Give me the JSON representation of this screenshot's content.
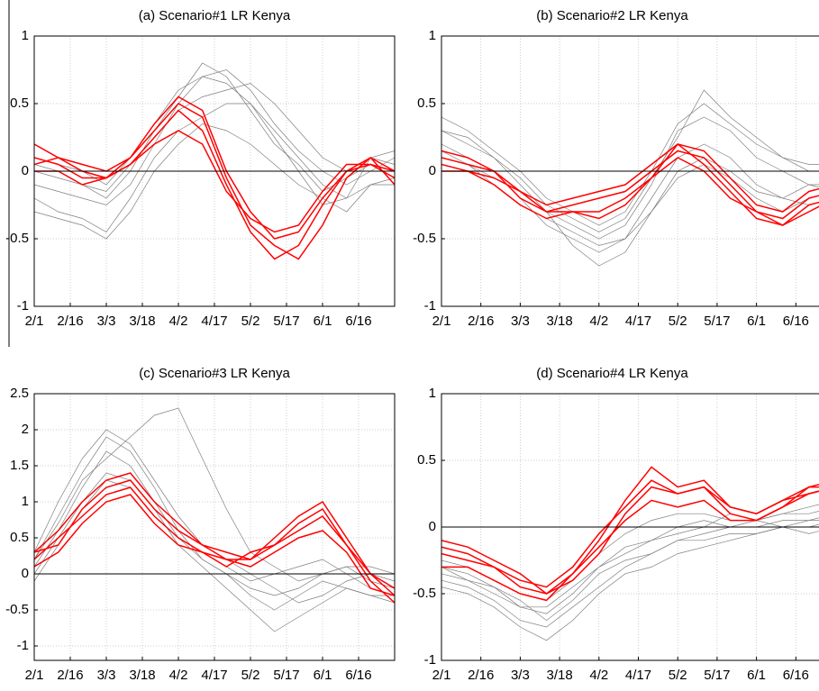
{
  "chart_data": [
    {
      "type": "line",
      "title": "(a) Scenario#1 LR Kenya",
      "x": [
        0,
        10,
        20,
        30,
        40,
        50,
        60,
        70,
        80,
        90,
        100,
        110,
        120,
        130,
        140,
        150
      ],
      "xlim": [
        0,
        150
      ],
      "xticks": [
        {
          "value": 0,
          "label": "2/1"
        },
        {
          "value": 15,
          "label": "2/16"
        },
        {
          "value": 30,
          "label": "3/3"
        },
        {
          "value": 45,
          "label": "3/18"
        },
        {
          "value": 60,
          "label": "4/2"
        },
        {
          "value": 75,
          "label": "4/17"
        },
        {
          "value": 90,
          "label": "5/2"
        },
        {
          "value": 105,
          "label": "5/17"
        },
        {
          "value": 120,
          "label": "6/1"
        },
        {
          "value": 135,
          "label": "6/16"
        }
      ],
      "ylim": [
        -1,
        1
      ],
      "yticks": [
        -1,
        -0.5,
        0,
        0.5,
        1
      ],
      "grid": true,
      "series": [
        {
          "color": "#7f7f7f",
          "values": [
            -0.1,
            -0.15,
            -0.2,
            -0.25,
            -0.1,
            0.2,
            0.5,
            0.7,
            0.75,
            0.6,
            0.35,
            0.15,
            0,
            -0.1,
            0,
            0.1
          ]
        },
        {
          "color": "#7f7f7f",
          "values": [
            0,
            -0.05,
            -0.1,
            -0.2,
            0,
            0.3,
            0.55,
            0.8,
            0.7,
            0.45,
            0.2,
            0.05,
            -0.15,
            -0.05,
            0.05,
            0
          ]
        },
        {
          "color": "#7f7f7f",
          "values": [
            -0.2,
            -0.3,
            -0.35,
            -0.45,
            -0.2,
            0.1,
            0.3,
            0.4,
            0.5,
            0.5,
            0.3,
            0.1,
            -0.1,
            -0.2,
            -0.1,
            -0.05
          ]
        },
        {
          "color": "#7f7f7f",
          "values": [
            0.05,
            0,
            -0.1,
            -0.15,
            0.05,
            0.25,
            0.45,
            0.55,
            0.6,
            0.65,
            0.5,
            0.3,
            0.1,
            0,
            0.1,
            0.05
          ]
        },
        {
          "color": "#7f7f7f",
          "values": [
            -0.3,
            -0.35,
            -0.4,
            -0.5,
            -0.3,
            0,
            0.2,
            0.35,
            0.3,
            0.2,
            0.05,
            -0.1,
            -0.2,
            -0.3,
            -0.1,
            -0.1
          ]
        },
        {
          "color": "#7f7f7f",
          "values": [
            0.1,
            0.05,
            0,
            -0.1,
            0.1,
            0.35,
            0.6,
            0.7,
            0.65,
            0.5,
            0.25,
            0,
            -0.25,
            -0.2,
            0.1,
            0.15
          ]
        },
        {
          "color": "#ff0000",
          "values": [
            0.2,
            0.1,
            0.05,
            0,
            0.1,
            0.3,
            0.5,
            0.4,
            -0.05,
            -0.4,
            -0.55,
            -0.65,
            -0.4,
            -0.05,
            0.1,
            0
          ]
        },
        {
          "color": "#ff0000",
          "values": [
            0.1,
            0.05,
            -0.05,
            -0.05,
            0.05,
            0.25,
            0.45,
            0.3,
            -0.1,
            -0.45,
            -0.65,
            -0.55,
            -0.25,
            0,
            0.05,
            -0.05
          ]
        },
        {
          "color": "#ff0000",
          "values": [
            0,
            0,
            -0.1,
            -0.05,
            0.05,
            0.2,
            0.3,
            0.2,
            -0.15,
            -0.35,
            -0.45,
            -0.4,
            -0.15,
            0.05,
            0.05,
            0
          ]
        },
        {
          "color": "#ff0000",
          "values": [
            0.05,
            0.1,
            0,
            -0.05,
            0.1,
            0.35,
            0.55,
            0.45,
            0,
            -0.3,
            -0.5,
            -0.45,
            -0.2,
            0,
            0.1,
            -0.1
          ]
        }
      ]
    },
    {
      "type": "line",
      "title": "(b) Scenario#2 LR Kenya",
      "x": [
        0,
        10,
        20,
        30,
        40,
        50,
        60,
        70,
        80,
        90,
        100,
        110,
        120,
        130,
        140,
        150
      ],
      "xlim": [
        0,
        150
      ],
      "xticks": [
        {
          "value": 0,
          "label": "2/1"
        },
        {
          "value": 15,
          "label": "2/16"
        },
        {
          "value": 30,
          "label": "3/3"
        },
        {
          "value": 45,
          "label": "3/18"
        },
        {
          "value": 60,
          "label": "4/2"
        },
        {
          "value": 75,
          "label": "4/17"
        },
        {
          "value": 90,
          "label": "5/2"
        },
        {
          "value": 105,
          "label": "5/17"
        },
        {
          "value": 120,
          "label": "6/1"
        },
        {
          "value": 135,
          "label": "6/16"
        }
      ],
      "ylim": [
        -1,
        1
      ],
      "yticks": [
        -1,
        -0.5,
        0,
        0.5,
        1
      ],
      "grid": true,
      "series": [
        {
          "color": "#7f7f7f",
          "values": [
            0.3,
            0.2,
            0.1,
            -0.1,
            -0.3,
            -0.4,
            -0.5,
            -0.4,
            -0.1,
            0.3,
            0.4,
            0.3,
            0.1,
            0,
            -0.1,
            -0.15
          ]
        },
        {
          "color": "#7f7f7f",
          "values": [
            0.4,
            0.3,
            0.15,
            0,
            -0.2,
            -0.3,
            -0.4,
            -0.3,
            0,
            0.35,
            0.5,
            0.35,
            0.2,
            0.1,
            0,
            0
          ]
        },
        {
          "color": "#7f7f7f",
          "values": [
            0.2,
            0.1,
            0,
            -0.2,
            -0.4,
            -0.5,
            -0.6,
            -0.5,
            -0.2,
            0.1,
            0.2,
            0.1,
            -0.1,
            -0.2,
            -0.25,
            -0.2
          ]
        },
        {
          "color": "#7f7f7f",
          "values": [
            0.1,
            0.05,
            -0.1,
            -0.25,
            -0.35,
            -0.45,
            -0.55,
            -0.5,
            -0.3,
            0,
            0.1,
            0,
            -0.15,
            -0.2,
            -0.1,
            -0.1
          ]
        },
        {
          "color": "#7f7f7f",
          "values": [
            0.3,
            0.25,
            0.1,
            -0.05,
            -0.25,
            -0.35,
            -0.45,
            -0.35,
            -0.05,
            0.25,
            0.6,
            0.4,
            0.25,
            0.1,
            0.05,
            0.05
          ]
        },
        {
          "color": "#7f7f7f",
          "values": [
            0.15,
            0.05,
            -0.05,
            -0.15,
            -0.3,
            -0.55,
            -0.7,
            -0.6,
            -0.3,
            -0.05,
            0.05,
            -0.05,
            -0.2,
            -0.3,
            -0.2,
            -0.15
          ]
        },
        {
          "color": "#ff0000",
          "values": [
            0.1,
            0.05,
            0,
            -0.2,
            -0.3,
            -0.25,
            -0.2,
            -0.15,
            0,
            0.15,
            0.1,
            -0.1,
            -0.3,
            -0.35,
            -0.2,
            -0.15
          ]
        },
        {
          "color": "#ff0000",
          "values": [
            0.05,
            0,
            -0.05,
            -0.15,
            -0.3,
            -0.3,
            -0.3,
            -0.2,
            -0.05,
            0.2,
            0.05,
            -0.15,
            -0.35,
            -0.4,
            -0.25,
            -0.2
          ]
        },
        {
          "color": "#ff0000",
          "values": [
            0,
            0,
            -0.1,
            -0.25,
            -0.35,
            -0.3,
            -0.35,
            -0.25,
            -0.05,
            0.1,
            0,
            -0.2,
            -0.3,
            -0.4,
            -0.3,
            -0.2
          ]
        },
        {
          "color": "#ff0000",
          "values": [
            0.15,
            0.1,
            0,
            -0.15,
            -0.25,
            -0.2,
            -0.15,
            -0.1,
            0.05,
            0.2,
            0.15,
            -0.05,
            -0.25,
            -0.3,
            -0.15,
            -0.1
          ]
        }
      ]
    },
    {
      "type": "line",
      "title": "(c) Scenario#3 LR Kenya",
      "x": [
        0,
        10,
        20,
        30,
        40,
        50,
        60,
        70,
        80,
        90,
        100,
        110,
        120,
        130,
        140,
        150
      ],
      "xlim": [
        0,
        150
      ],
      "xticks": [
        {
          "value": 0,
          "label": "2/1"
        },
        {
          "value": 15,
          "label": "2/16"
        },
        {
          "value": 30,
          "label": "3/3"
        },
        {
          "value": 45,
          "label": "3/18"
        },
        {
          "value": 60,
          "label": "4/2"
        },
        {
          "value": 75,
          "label": "4/17"
        },
        {
          "value": 90,
          "label": "5/2"
        },
        {
          "value": 105,
          "label": "5/17"
        },
        {
          "value": 120,
          "label": "6/1"
        },
        {
          "value": 135,
          "label": "6/16"
        }
      ],
      "ylim": [
        -1.2,
        2.5
      ],
      "yticks": [
        -1,
        -0.5,
        0,
        0.5,
        1,
        1.5,
        2,
        2.5
      ],
      "grid": true,
      "series": [
        {
          "color": "#7f7f7f",
          "values": [
            0.2,
            0.8,
            1.4,
            1.9,
            1.7,
            1.2,
            0.6,
            0.2,
            0,
            -0.2,
            -0.3,
            -0.2,
            0,
            0.1,
            -0.1,
            -0.2
          ]
        },
        {
          "color": "#7f7f7f",
          "values": [
            0.1,
            0.6,
            1.2,
            1.7,
            1.5,
            1.0,
            0.5,
            0.3,
            0.1,
            -0.1,
            0,
            0.1,
            0.2,
            0,
            -0.2,
            -0.3
          ]
        },
        {
          "color": "#7f7f7f",
          "values": [
            0.3,
            1.0,
            1.6,
            2.0,
            1.8,
            1.3,
            0.8,
            0.4,
            0.2,
            0,
            -0.2,
            -0.4,
            -0.3,
            -0.1,
            0,
            -0.1
          ]
        },
        {
          "color": "#7f7f7f",
          "values": [
            0,
            0.5,
            1.0,
            1.4,
            1.3,
            0.9,
            0.4,
            0.1,
            -0.2,
            -0.5,
            -0.8,
            -0.6,
            -0.4,
            -0.2,
            -0.3,
            -0.4
          ]
        },
        {
          "color": "#7f7f7f",
          "values": [
            0.2,
            0.7,
            1.3,
            1.6,
            1.9,
            2.2,
            2.3,
            1.6,
            0.9,
            0.3,
            0.1,
            -0.1,
            0,
            0.1,
            0.1,
            0
          ]
        },
        {
          "color": "#7f7f7f",
          "values": [
            -0.1,
            0.4,
            0.9,
            1.3,
            1.2,
            0.8,
            0.5,
            0.2,
            0,
            -0.3,
            -0.5,
            -0.3,
            -0.1,
            -0.2,
            -0.3,
            -0.3
          ]
        },
        {
          "color": "#ff0000",
          "values": [
            0.3,
            0.4,
            0.9,
            1.2,
            1.3,
            0.9,
            0.6,
            0.4,
            0.2,
            0.2,
            0.5,
            0.8,
            1.0,
            0.5,
            0,
            -0.3
          ]
        },
        {
          "color": "#ff0000",
          "values": [
            0.2,
            0.5,
            0.8,
            1.1,
            1.2,
            0.8,
            0.5,
            0.3,
            0.1,
            0.3,
            0.4,
            0.6,
            0.8,
            0.4,
            -0.1,
            -0.4
          ]
        },
        {
          "color": "#ff0000",
          "values": [
            0.1,
            0.3,
            0.7,
            1.0,
            1.1,
            0.7,
            0.4,
            0.3,
            0.2,
            0.1,
            0.3,
            0.5,
            0.6,
            0.3,
            -0.2,
            -0.3
          ]
        },
        {
          "color": "#ff0000",
          "values": [
            0.3,
            0.6,
            1.0,
            1.3,
            1.4,
            1.0,
            0.7,
            0.4,
            0.3,
            0.2,
            0.4,
            0.7,
            0.9,
            0.4,
            0,
            -0.2
          ]
        }
      ]
    },
    {
      "type": "line",
      "title": "(d) Scenario#4 LR Kenya",
      "x": [
        0,
        10,
        20,
        30,
        40,
        50,
        60,
        70,
        80,
        90,
        100,
        110,
        120,
        130,
        140,
        150
      ],
      "xlim": [
        0,
        150
      ],
      "xticks": [
        {
          "value": 0,
          "label": "2/1"
        },
        {
          "value": 15,
          "label": "2/16"
        },
        {
          "value": 30,
          "label": "3/3"
        },
        {
          "value": 45,
          "label": "3/18"
        },
        {
          "value": 60,
          "label": "4/2"
        },
        {
          "value": 75,
          "label": "4/17"
        },
        {
          "value": 90,
          "label": "5/2"
        },
        {
          "value": 105,
          "label": "5/17"
        },
        {
          "value": 120,
          "label": "6/1"
        },
        {
          "value": 135,
          "label": "6/16"
        }
      ],
      "ylim": [
        -1,
        1
      ],
      "yticks": [
        -1,
        -0.5,
        0,
        0.5,
        1
      ],
      "grid": true,
      "series": [
        {
          "color": "#7f7f7f",
          "values": [
            -0.3,
            -0.35,
            -0.45,
            -0.6,
            -0.65,
            -0.5,
            -0.3,
            -0.15,
            -0.1,
            0,
            0.05,
            0,
            0.05,
            0.1,
            0.15,
            0.2
          ]
        },
        {
          "color": "#7f7f7f",
          "values": [
            -0.4,
            -0.45,
            -0.55,
            -0.7,
            -0.75,
            -0.6,
            -0.45,
            -0.3,
            -0.2,
            -0.1,
            -0.05,
            0,
            0,
            0.05,
            0.05,
            0.1
          ]
        },
        {
          "color": "#7f7f7f",
          "values": [
            -0.25,
            -0.3,
            -0.4,
            -0.5,
            -0.55,
            -0.4,
            -0.2,
            -0.05,
            0.05,
            0.1,
            0.1,
            0.05,
            0.05,
            0,
            0.05,
            0.05
          ]
        },
        {
          "color": "#7f7f7f",
          "values": [
            -0.45,
            -0.5,
            -0.6,
            -0.75,
            -0.85,
            -0.7,
            -0.5,
            -0.35,
            -0.3,
            -0.2,
            -0.15,
            -0.1,
            -0.05,
            0,
            -0.05,
            0
          ]
        },
        {
          "color": "#7f7f7f",
          "values": [
            -0.35,
            -0.4,
            -0.5,
            -0.6,
            -0.6,
            -0.45,
            -0.3,
            -0.2,
            -0.1,
            -0.05,
            0,
            0.1,
            0.05,
            0.1,
            0.1,
            0.15
          ]
        },
        {
          "color": "#7f7f7f",
          "values": [
            -0.3,
            -0.4,
            -0.45,
            -0.55,
            -0.7,
            -0.55,
            -0.35,
            -0.25,
            -0.2,
            -0.1,
            -0.1,
            -0.05,
            -0.05,
            0,
            0,
            0.05
          ]
        },
        {
          "color": "#ff0000",
          "values": [
            -0.1,
            -0.15,
            -0.25,
            -0.35,
            -0.5,
            -0.35,
            -0.1,
            0.2,
            0.45,
            0.3,
            0.35,
            0.15,
            0.1,
            0.2,
            0.3,
            0.3
          ]
        },
        {
          "color": "#ff0000",
          "values": [
            -0.15,
            -0.2,
            -0.3,
            -0.4,
            -0.45,
            -0.3,
            -0.05,
            0.15,
            0.35,
            0.25,
            0.3,
            0.1,
            0.05,
            0.15,
            0.25,
            0.3
          ]
        },
        {
          "color": "#ff0000",
          "values": [
            -0.3,
            -0.3,
            -0.4,
            -0.5,
            -0.55,
            -0.35,
            -0.15,
            0.05,
            0.2,
            0.15,
            0.2,
            0.05,
            0.05,
            0.15,
            0.3,
            0.35
          ]
        },
        {
          "color": "#ff0000",
          "values": [
            -0.2,
            -0.25,
            -0.3,
            -0.45,
            -0.5,
            -0.4,
            -0.2,
            0.1,
            0.3,
            0.25,
            0.3,
            0.15,
            0.1,
            0.2,
            0.25,
            0.3
          ]
        }
      ]
    }
  ]
}
